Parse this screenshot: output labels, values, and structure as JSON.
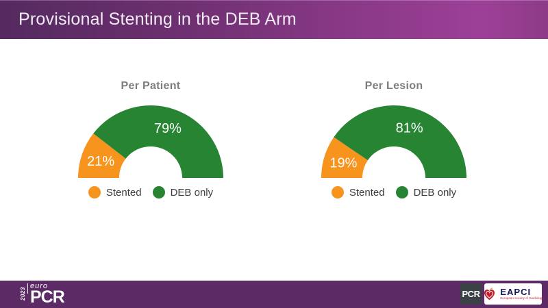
{
  "slide": {
    "header": {
      "title": "Provisional Stenting in the DEB Arm"
    },
    "footer": {
      "europcr_logo": {
        "year": "2023",
        "euro": "euro",
        "pcr": "PCR"
      },
      "pcr_logo": "PCR",
      "eapci_logo": {
        "name": "EAPCI",
        "tagline": "European Society of Cardiology"
      }
    }
  },
  "colors": {
    "stented_orange": "#F7941E",
    "deb_only_green": "#278433",
    "header_gradient_left": "#542A60",
    "header_gradient_right": "#9C4097",
    "footer_purple": "#5C2A65",
    "chart_title_gray": "#7D7D7D"
  },
  "chart_data": [
    {
      "type": "pie",
      "style": "half-donut",
      "title": "Per Patient",
      "categories": [
        "Stented",
        "DEB only"
      ],
      "values": [
        21,
        79
      ],
      "display_labels": [
        "21%",
        "79%"
      ],
      "colors": [
        "#F7941E",
        "#278433"
      ],
      "unit": "percent",
      "legend_position": "bottom"
    },
    {
      "type": "pie",
      "style": "half-donut",
      "title": "Per Lesion",
      "categories": [
        "Stented",
        "DEB only"
      ],
      "values": [
        19,
        81
      ],
      "display_labels": [
        "19%",
        "81%"
      ],
      "colors": [
        "#F7941E",
        "#278433"
      ],
      "unit": "percent",
      "legend_position": "bottom"
    }
  ]
}
